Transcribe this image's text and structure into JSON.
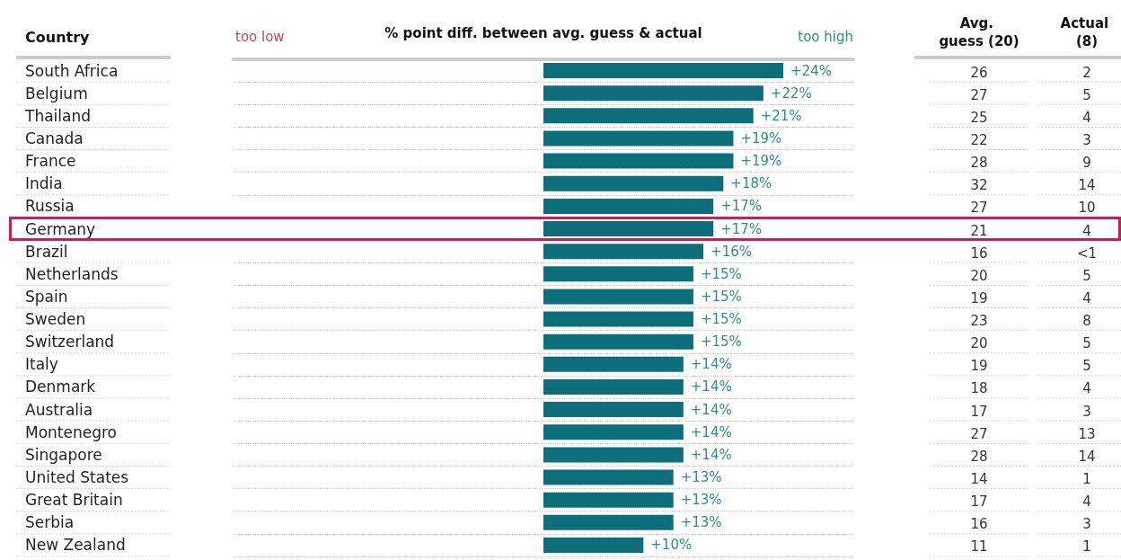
{
  "chart_data": {
    "type": "bar",
    "orientation": "horizontal",
    "xlabel": "% point diff. between avg. guess & actual",
    "ylabel": "Country",
    "categories": [
      "South Africa",
      "Belgium",
      "Thailand",
      "Canada",
      "France",
      "India",
      "Russia",
      "Germany",
      "Brazil",
      "Netherlands",
      "Spain",
      "Sweden",
      "Switzerland",
      "Italy",
      "Denmark",
      "Australia",
      "Montenegro",
      "Singapore",
      "United States",
      "Great Britain",
      "Serbia",
      "New Zealand"
    ],
    "values": [
      24,
      22,
      21,
      19,
      19,
      18,
      17,
      17,
      16,
      15,
      15,
      15,
      15,
      14,
      14,
      14,
      14,
      14,
      13,
      13,
      13,
      10
    ],
    "value_labels": [
      "+24%",
      "+22%",
      "+21%",
      "+19%",
      "+19%",
      "+18%",
      "+17%",
      "+17%",
      "+16%",
      "+15%",
      "+15%",
      "+15%",
      "+15%",
      "+14%",
      "+14%",
      "+14%",
      "+14%",
      "+14%",
      "+13%",
      "+13%",
      "+13%",
      "+10%"
    ],
    "color": "#0b6e7a",
    "xlim": [
      -31,
      31
    ],
    "tick_labels": "y",
    "grid": "y",
    "annotations": [
      "too low",
      "too high",
      "Avg. guess (20)",
      "Actual (8)",
      "26",
      "27",
      "25",
      "22",
      "28",
      "32",
      "27",
      "21",
      "16",
      "20",
      "19",
      "23",
      "20",
      "19",
      "18",
      "17",
      "27",
      "28",
      "14",
      "17",
      "16",
      "11",
      "2",
      "5",
      "4",
      "3",
      "9",
      "14",
      "10",
      "4",
      "<1",
      "5",
      "4",
      "8",
      "5",
      "5",
      "4",
      "3",
      "13",
      "14",
      "1",
      "4",
      "3",
      "1"
    ]
  }
}
